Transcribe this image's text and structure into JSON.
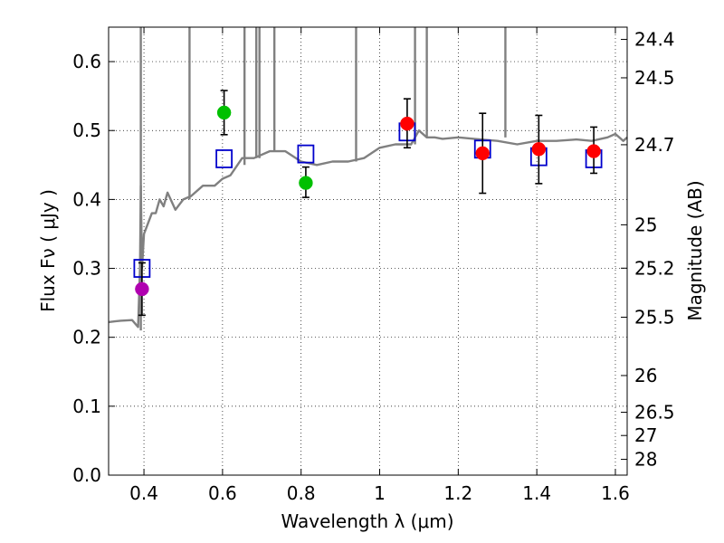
{
  "chart_data": {
    "type": "scatter",
    "title": "",
    "xlabel": "Wavelength  λ (μm)",
    "ylabel": "Flux  Fν  ( μJy )",
    "ylabel_right": "Magnitude (AB)",
    "xlim": [
      0.31,
      1.63
    ],
    "ylim": [
      0.0,
      0.65
    ],
    "grid": true,
    "xticks": [
      0.4,
      0.6,
      0.8,
      1.0,
      1.2,
      1.4,
      1.6
    ],
    "xtick_labels": [
      "0.4",
      "0.6",
      "0.8",
      "1",
      "1.2",
      "1.4",
      "1.6"
    ],
    "yticks": [
      0.0,
      0.1,
      0.2,
      0.3,
      0.4,
      0.5,
      0.6
    ],
    "ytick_labels": [
      "0.0",
      "0.1",
      "0.2",
      "0.3",
      "0.4",
      "0.5",
      "0.6"
    ],
    "right_ticks": [
      {
        "flux": 0.6322,
        "label": "24.4"
      },
      {
        "flux": 0.5765,
        "label": "24.5"
      },
      {
        "flux": 0.4794,
        "label": "24.7"
      },
      {
        "flux": 0.3632,
        "label": "25"
      },
      {
        "flux": 0.3003,
        "label": "25.2"
      },
      {
        "flux": 0.2291,
        "label": "25.5"
      },
      {
        "flux": 0.1445,
        "label": "26"
      },
      {
        "flux": 0.0912,
        "label": "26.5"
      },
      {
        "flux": 0.0575,
        "label": "27"
      },
      {
        "flux": 0.0229,
        "label": "28"
      }
    ],
    "series": [
      {
        "name": "model-spectrum",
        "kind": "line",
        "color": "#808080",
        "x": [
          0.31,
          0.34,
          0.37,
          0.385,
          0.39,
          0.392,
          0.395,
          0.4,
          0.42,
          0.43,
          0.44,
          0.45,
          0.46,
          0.48,
          0.5,
          0.52,
          0.55,
          0.58,
          0.6,
          0.62,
          0.65,
          0.68,
          0.72,
          0.76,
          0.8,
          0.84,
          0.88,
          0.92,
          0.96,
          1.0,
          1.04,
          1.08,
          1.1,
          1.12,
          1.14,
          1.16,
          1.2,
          1.24,
          1.3,
          1.35,
          1.4,
          1.45,
          1.5,
          1.54,
          1.58,
          1.6,
          1.62,
          1.63
        ],
        "y": [
          0.222,
          0.224,
          0.225,
          0.215,
          0.3,
          0.42,
          0.3,
          0.35,
          0.38,
          0.38,
          0.4,
          0.39,
          0.41,
          0.385,
          0.4,
          0.405,
          0.42,
          0.42,
          0.43,
          0.435,
          0.46,
          0.46,
          0.47,
          0.47,
          0.455,
          0.45,
          0.455,
          0.455,
          0.46,
          0.475,
          0.48,
          0.48,
          0.5,
          0.49,
          0.49,
          0.488,
          0.49,
          0.488,
          0.485,
          0.48,
          0.485,
          0.485,
          0.487,
          0.485,
          0.49,
          0.495,
          0.485,
          0.49
        ]
      },
      {
        "name": "emission-lines",
        "kind": "spikes",
        "color": "#808080",
        "x": [
          0.392,
          0.516,
          0.656,
          0.686,
          0.694,
          0.732,
          0.94,
          1.09,
          1.12,
          1.32
        ],
        "base": [
          0.21,
          0.4,
          0.45,
          0.46,
          0.46,
          0.47,
          0.455,
          0.48,
          0.49,
          0.49
        ],
        "top": [
          0.65,
          0.65,
          0.65,
          0.65,
          0.65,
          0.65,
          0.65,
          0.65,
          0.65,
          0.65
        ]
      },
      {
        "name": "model-photometry",
        "kind": "markers",
        "marker": "square",
        "color": "#0000cc",
        "x": [
          0.395,
          0.604,
          0.812,
          1.07,
          1.262,
          1.405,
          1.545
        ],
        "y": [
          0.3,
          0.459,
          0.466,
          0.498,
          0.473,
          0.462,
          0.459
        ]
      },
      {
        "name": "observed-blue",
        "kind": "points",
        "color": "#b000b0",
        "x": [
          0.395
        ],
        "y": [
          0.27
        ],
        "yerr": [
          [
            0.232,
            0.308
          ]
        ]
      },
      {
        "name": "observed-green",
        "kind": "points",
        "color": "#00c000",
        "x": [
          0.604,
          0.812
        ],
        "y": [
          0.526,
          0.424
        ],
        "yerr": [
          [
            0.494,
            0.558
          ],
          [
            0.403,
            0.447
          ]
        ]
      },
      {
        "name": "observed-red",
        "kind": "points",
        "color": "#ff0000",
        "x": [
          1.07,
          1.262,
          1.405,
          1.545
        ],
        "y": [
          0.51,
          0.467,
          0.473,
          0.47
        ],
        "yerr": [
          [
            0.475,
            0.546
          ],
          [
            0.409,
            0.525
          ],
          [
            0.423,
            0.522
          ],
          [
            0.438,
            0.505
          ]
        ]
      }
    ]
  }
}
